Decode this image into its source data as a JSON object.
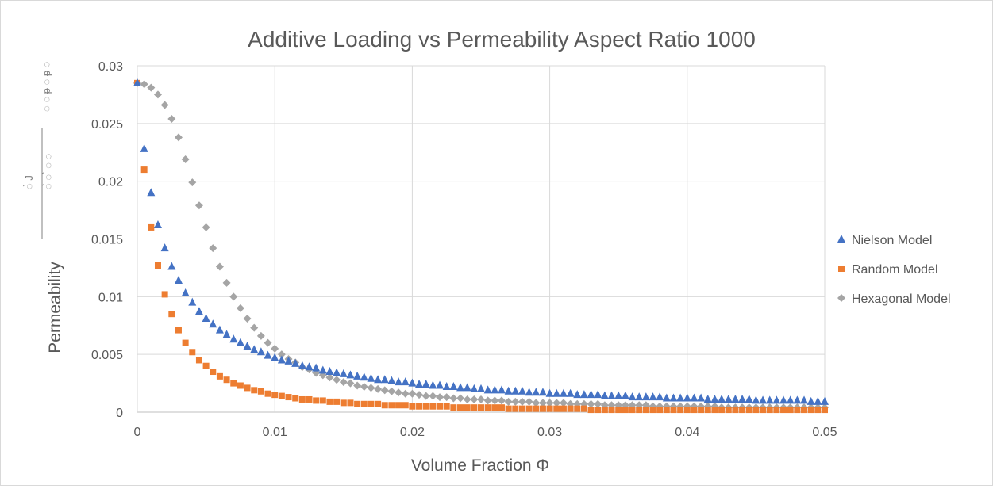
{
  "chart_data": {
    "type": "scatter",
    "title": "Additive Loading vs Permeability Aspect Ratio 1000",
    "xlabel": "Volume Fraction Φ",
    "ylabel": "Permeability",
    "xlim": [
      0,
      0.05
    ],
    "ylim": [
      0,
      0.03
    ],
    "x_ticks": [
      "0",
      "0.01",
      "0.02",
      "0.03",
      "0.04",
      "0.05"
    ],
    "y_ticks": [
      "0",
      "0.005",
      "0.01",
      "0.015",
      "0.02",
      "0.025",
      "0.03"
    ],
    "grid": true,
    "legend_position": "right",
    "x": [
      0,
      0.0005,
      0.001,
      0.0015,
      0.002,
      0.0025,
      0.003,
      0.0035,
      0.004,
      0.0045,
      0.005,
      0.0055,
      0.006,
      0.0065,
      0.007,
      0.0075,
      0.008,
      0.0085,
      0.009,
      0.0095,
      0.01,
      0.0105,
      0.011,
      0.0115,
      0.012,
      0.0125,
      0.013,
      0.0135,
      0.014,
      0.0145,
      0.015,
      0.0155,
      0.016,
      0.0165,
      0.017,
      0.0175,
      0.018,
      0.0185,
      0.019,
      0.0195,
      0.02,
      0.0205,
      0.021,
      0.0215,
      0.022,
      0.0225,
      0.023,
      0.0235,
      0.024,
      0.0245,
      0.025,
      0.0255,
      0.026,
      0.0265,
      0.027,
      0.0275,
      0.028,
      0.0285,
      0.029,
      0.0295,
      0.03,
      0.0305,
      0.031,
      0.0315,
      0.032,
      0.0325,
      0.033,
      0.0335,
      0.034,
      0.0345,
      0.035,
      0.0355,
      0.036,
      0.0365,
      0.037,
      0.0375,
      0.038,
      0.0385,
      0.039,
      0.0395,
      0.04,
      0.0405,
      0.041,
      0.0415,
      0.042,
      0.0425,
      0.043,
      0.0435,
      0.044,
      0.0445,
      0.045,
      0.0455,
      0.046,
      0.0465,
      0.047,
      0.0475,
      0.048,
      0.0485,
      0.049,
      0.0495,
      0.05
    ],
    "series": [
      {
        "name": "Nielson Model",
        "color": "#4472c4",
        "marker": "triangle",
        "values": [
          0.0285,
          0.0228,
          0.019,
          0.0162,
          0.0142,
          0.0126,
          0.0114,
          0.0103,
          0.0095,
          0.0087,
          0.0081,
          0.0076,
          0.0071,
          0.0067,
          0.0063,
          0.006,
          0.0057,
          0.0054,
          0.0052,
          0.0049,
          0.0047,
          0.0045,
          0.0044,
          0.0042,
          0.004,
          0.0039,
          0.0038,
          0.0036,
          0.0035,
          0.0034,
          0.0033,
          0.0032,
          0.0031,
          0.003,
          0.0029,
          0.0028,
          0.0028,
          0.0027,
          0.0026,
          0.0026,
          0.0025,
          0.0024,
          0.0024,
          0.0023,
          0.0023,
          0.0022,
          0.0022,
          0.0021,
          0.0021,
          0.002,
          0.002,
          0.0019,
          0.0019,
          0.0019,
          0.0018,
          0.0018,
          0.0018,
          0.0017,
          0.0017,
          0.0017,
          0.0016,
          0.0016,
          0.0016,
          0.0016,
          0.0015,
          0.0015,
          0.0015,
          0.0015,
          0.0014,
          0.0014,
          0.0014,
          0.0014,
          0.0013,
          0.0013,
          0.0013,
          0.0013,
          0.0013,
          0.0012,
          0.0012,
          0.0012,
          0.0012,
          0.0012,
          0.0012,
          0.0011,
          0.0011,
          0.0011,
          0.0011,
          0.0011,
          0.0011,
          0.0011,
          0.001,
          0.001,
          0.001,
          0.001,
          0.001,
          0.001,
          0.001,
          0.001,
          0.0009,
          0.0009,
          0.0009
        ]
      },
      {
        "name": "Random Model",
        "color": "#ed7d31",
        "marker": "square",
        "values": [
          0.0285,
          0.021,
          0.016,
          0.0127,
          0.0102,
          0.0085,
          0.0071,
          0.006,
          0.0052,
          0.0045,
          0.004,
          0.0035,
          0.0031,
          0.0028,
          0.0025,
          0.0023,
          0.0021,
          0.0019,
          0.0018,
          0.0016,
          0.0015,
          0.0014,
          0.0013,
          0.0012,
          0.0011,
          0.0011,
          0.001,
          0.001,
          0.0009,
          0.0009,
          0.0008,
          0.0008,
          0.0007,
          0.0007,
          0.0007,
          0.0007,
          0.0006,
          0.0006,
          0.0006,
          0.0006,
          0.0005,
          0.0005,
          0.0005,
          0.0005,
          0.0005,
          0.0005,
          0.0004,
          0.0004,
          0.0004,
          0.0004,
          0.0004,
          0.0004,
          0.0004,
          0.0004,
          0.0003,
          0.0003,
          0.0003,
          0.0003,
          0.0003,
          0.0003,
          0.0003,
          0.0003,
          0.0003,
          0.0003,
          0.0003,
          0.0003,
          0.0002,
          0.0002,
          0.0002,
          0.0002,
          0.0002,
          0.0002,
          0.0002,
          0.0002,
          0.0002,
          0.0002,
          0.0002,
          0.0002,
          0.0002,
          0.0002,
          0.0002,
          0.0002,
          0.0002,
          0.0002,
          0.0002,
          0.0002,
          0.0002,
          0.0002,
          0.0002,
          0.0002,
          0.0002,
          0.0002,
          0.0002,
          0.0002,
          0.0002,
          0.0002,
          0.0002,
          0.0002,
          0.0002,
          0.0002,
          0.0002
        ]
      },
      {
        "name": "Hexagonal Model",
        "color": "#a5a5a5",
        "marker": "diamond",
        "values": [
          0.0285,
          0.0284,
          0.0281,
          0.0275,
          0.0266,
          0.0254,
          0.0238,
          0.0219,
          0.0199,
          0.0179,
          0.016,
          0.0142,
          0.0126,
          0.0112,
          0.01,
          0.009,
          0.0081,
          0.0073,
          0.0066,
          0.006,
          0.0055,
          0.005,
          0.0046,
          0.0043,
          0.0039,
          0.0037,
          0.0034,
          0.0032,
          0.003,
          0.0028,
          0.0026,
          0.0025,
          0.0023,
          0.0022,
          0.0021,
          0.002,
          0.0019,
          0.0018,
          0.0017,
          0.0016,
          0.0016,
          0.0015,
          0.0014,
          0.0014,
          0.0013,
          0.0013,
          0.0012,
          0.0012,
          0.0011,
          0.0011,
          0.0011,
          0.001,
          0.001,
          0.001,
          0.0009,
          0.0009,
          0.0009,
          0.0009,
          0.0008,
          0.0008,
          0.0008,
          0.0008,
          0.0008,
          0.0007,
          0.0007,
          0.0007,
          0.0007,
          0.0007,
          0.0006,
          0.0006,
          0.0006,
          0.0006,
          0.0006,
          0.0006,
          0.0006,
          0.0005,
          0.0005,
          0.0005,
          0.0005,
          0.0005,
          0.0005,
          0.0005,
          0.0005,
          0.0005,
          0.0005,
          0.0004,
          0.0004,
          0.0004,
          0.0004,
          0.0004,
          0.0004,
          0.0004,
          0.0004,
          0.0004,
          0.0004,
          0.0004,
          0.0004,
          0.0004,
          0.0004,
          0.0004,
          0.0004
        ]
      }
    ]
  }
}
